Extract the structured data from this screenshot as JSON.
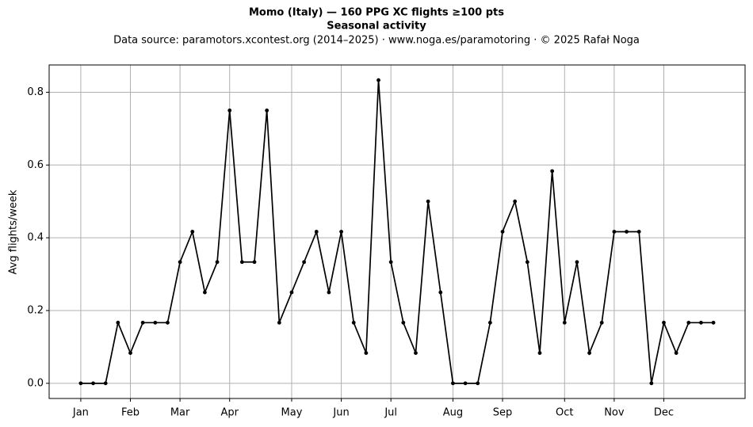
{
  "chart_data": {
    "type": "line",
    "title": "Momo (Italy)  —  160 PPG XC flights ≥100 pts",
    "subtitle": "Seasonal activity",
    "source": "Data source: paramotors.xcontest.org (2014–2025)  ·  www.noga.es/paramotoring  ·  © 2025 Rafał Noga",
    "y_label": "Avg flights/week",
    "x": [
      0,
      1,
      2,
      3,
      4,
      5,
      6,
      7,
      8,
      9,
      10,
      11,
      12,
      13,
      14,
      15,
      16,
      17,
      18,
      19,
      20,
      21,
      22,
      23,
      24,
      25,
      26,
      27,
      28,
      29,
      30,
      31,
      32,
      33,
      34,
      35,
      36,
      37,
      38,
      39,
      40,
      41,
      42,
      43,
      44,
      45,
      46,
      47,
      48,
      49,
      50,
      51
    ],
    "series": [
      {
        "name": "Avg flights/week",
        "color": "#000000",
        "values": [
          0,
          0,
          0,
          0.1667,
          0.0833,
          0.1667,
          0.1667,
          0.1667,
          0.3333,
          0.4167,
          0.25,
          0.3333,
          0.75,
          0.3333,
          0.3333,
          0.75,
          0.1667,
          0.25,
          0.3333,
          0.4167,
          0.25,
          0.4167,
          0.1667,
          0.0833,
          0.8333,
          0.3333,
          0.1667,
          0.0833,
          0.5,
          0.25,
          0,
          0,
          0,
          0.1667,
          0.4167,
          0.5,
          0.3333,
          0.0833,
          0.5833,
          0.1667,
          0.3333,
          0.0833,
          0.1667,
          0.4167,
          0.4167,
          0.4167,
          0,
          0.1667,
          0.0833,
          0.1667,
          0.1667,
          0.1667
        ]
      }
    ],
    "xlim": [
      -2.55,
      53.55
    ],
    "xticks": [
      {
        "value": 0,
        "label": "Jan"
      },
      {
        "value": 4,
        "label": "Feb"
      },
      {
        "value": 8,
        "label": "Mar"
      },
      {
        "value": 12,
        "label": "Apr"
      },
      {
        "value": 17,
        "label": "May"
      },
      {
        "value": 21,
        "label": "Jun"
      },
      {
        "value": 25,
        "label": "Jul"
      },
      {
        "value": 30,
        "label": "Aug"
      },
      {
        "value": 34,
        "label": "Sep"
      },
      {
        "value": 39,
        "label": "Oct"
      },
      {
        "value": 43,
        "label": "Nov"
      },
      {
        "value": 47,
        "label": "Dec"
      }
    ],
    "ylim": [
      -0.0417,
      0.875
    ],
    "yticks": [
      {
        "value": 0,
        "label": "0.0"
      },
      0.2,
      0.4,
      0.6,
      0.8
    ],
    "grid": true
  }
}
